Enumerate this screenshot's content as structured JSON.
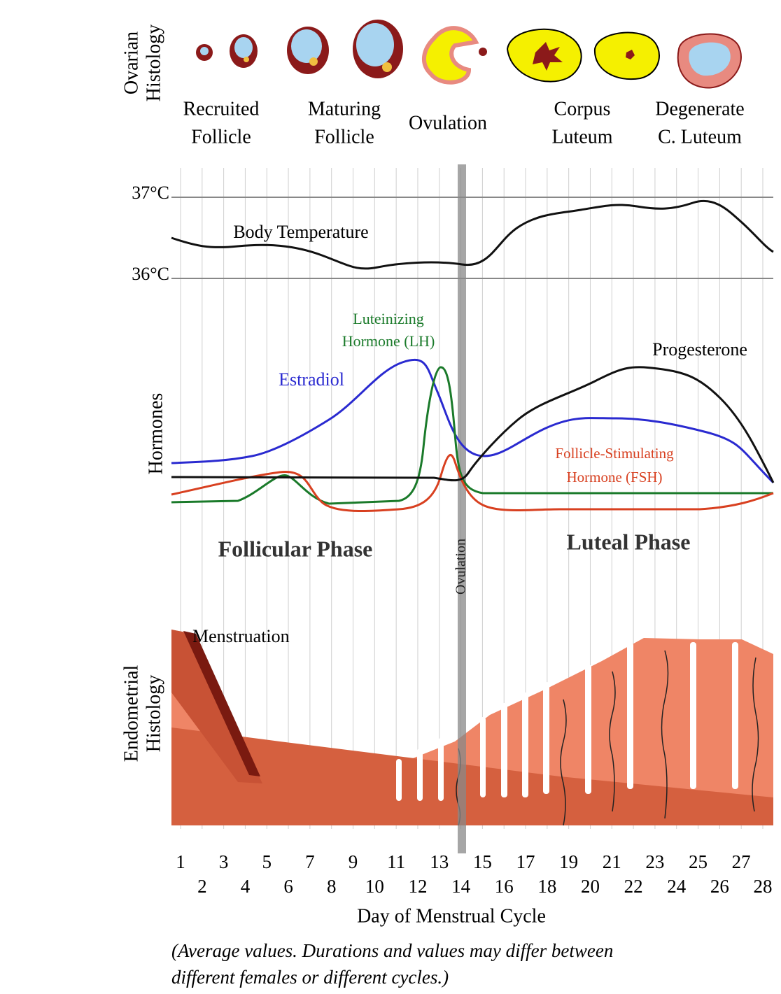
{
  "ovarian_histology": {
    "label_lines": [
      "Ovarian",
      "Histology"
    ],
    "stages": [
      {
        "lines": [
          "Recruited",
          "Follicle"
        ]
      },
      {
        "lines": [
          "Maturing",
          "Follicle"
        ]
      },
      {
        "lines": [
          "Ovulation"
        ]
      },
      {
        "lines": [
          "Corpus",
          "Luteum"
        ]
      },
      {
        "lines": [
          "Degenerate",
          "C. Luteum"
        ]
      }
    ]
  },
  "temperature": {
    "ticks": [
      "37°C",
      "36°C"
    ],
    "label": "Body Temperature"
  },
  "hormones": {
    "label": "Hormones",
    "estradiol": "Estradiol",
    "lh": [
      "Luteinizing",
      "Hormone (LH)"
    ],
    "progesterone": "Progesterone",
    "fsh": [
      "Follicle-Stimulating",
      "Hormone (FSH)"
    ]
  },
  "phases": {
    "follicular": "Follicular Phase",
    "luteal": "Luteal Phase",
    "ovulation": "Ovulation"
  },
  "endometrium": {
    "label_lines": [
      "Endometrial",
      "Histology"
    ],
    "menstruation": "Menstruation"
  },
  "x_axis": {
    "days": [
      1,
      2,
      3,
      4,
      5,
      6,
      7,
      8,
      9,
      10,
      11,
      12,
      13,
      14,
      15,
      16,
      17,
      18,
      19,
      20,
      21,
      22,
      23,
      24,
      25,
      26,
      27,
      28
    ],
    "title": "Day of Menstrual Cycle"
  },
  "note": [
    "(Average values. Durations and values may differ between",
    "different females or different cycles.)"
  ]
}
